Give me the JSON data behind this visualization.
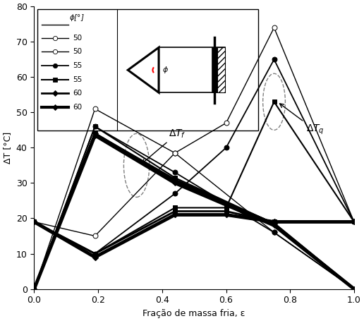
{
  "xlabel": "Fração de massa fria, ε",
  "ylabel": "ΔT [°C]",
  "xlim": [
    0.0,
    1.0
  ],
  "ylim": [
    0,
    80
  ],
  "yticks": [
    0,
    10,
    20,
    30,
    40,
    50,
    60,
    70,
    80
  ],
  "xticks": [
    0.0,
    0.2,
    0.4,
    0.6,
    0.8,
    1.0
  ],
  "series_deltaf": [
    {
      "x": [
        0.0,
        0.19,
        0.44,
        0.75,
        1.0
      ],
      "y": [
        0.0,
        51.0,
        38.5,
        16.0,
        0.0
      ],
      "lw": 1.0,
      "marker": "o",
      "mfc": "white",
      "ms": 5
    },
    {
      "x": [
        0.0,
        0.19,
        0.44,
        0.75,
        1.0
      ],
      "y": [
        0.0,
        46.0,
        33.0,
        16.0,
        0.0
      ],
      "lw": 1.3,
      "marker": "o",
      "mfc": "black",
      "ms": 5
    },
    {
      "x": [
        0.0,
        0.19,
        0.44,
        0.75,
        1.0
      ],
      "y": [
        0.0,
        46.0,
        31.5,
        18.5,
        0.0
      ],
      "lw": 1.5,
      "marker": "s",
      "mfc": "black",
      "ms": 5
    },
    {
      "x": [
        0.0,
        0.19,
        0.44,
        0.75,
        1.0
      ],
      "y": [
        0.0,
        44.0,
        31.0,
        18.5,
        0.0
      ],
      "lw": 2.0,
      "marker": "s",
      "mfc": "black",
      "ms": 5
    },
    {
      "x": [
        0.0,
        0.19,
        0.44,
        0.75,
        1.0
      ],
      "y": [
        0.0,
        44.0,
        30.5,
        18.5,
        0.0
      ],
      "lw": 2.5,
      "marker": "D",
      "mfc": "black",
      "ms": 4
    },
    {
      "x": [
        0.0,
        0.19,
        0.44,
        0.75,
        1.0
      ],
      "y": [
        0.0,
        43.5,
        30.0,
        18.0,
        0.0
      ],
      "lw": 3.5,
      "marker": "D",
      "mfc": "black",
      "ms": 4
    }
  ],
  "series_deltaq": [
    {
      "x": [
        0.0,
        0.19,
        0.44,
        0.6,
        0.75,
        1.0
      ],
      "y": [
        19.0,
        15.0,
        38.5,
        47.0,
        74.0,
        19.0
      ],
      "lw": 1.0,
      "marker": "o",
      "mfc": "white",
      "ms": 5
    },
    {
      "x": [
        0.0,
        0.19,
        0.44,
        0.6,
        0.75,
        1.0
      ],
      "y": [
        19.0,
        10.0,
        27.0,
        40.0,
        65.0,
        19.0
      ],
      "lw": 1.3,
      "marker": "o",
      "mfc": "black",
      "ms": 5
    },
    {
      "x": [
        0.0,
        0.19,
        0.44,
        0.6,
        0.75,
        1.0
      ],
      "y": [
        19.0,
        10.0,
        23.0,
        23.0,
        53.0,
        19.0
      ],
      "lw": 1.5,
      "marker": "s",
      "mfc": "black",
      "ms": 5
    },
    {
      "x": [
        0.0,
        0.19,
        0.44,
        0.6,
        0.75,
        1.0
      ],
      "y": [
        19.0,
        10.0,
        22.0,
        22.0,
        19.0,
        19.0
      ],
      "lw": 2.0,
      "marker": "s",
      "mfc": "black",
      "ms": 5
    },
    {
      "x": [
        0.0,
        0.19,
        0.44,
        0.6,
        0.75,
        1.0
      ],
      "y": [
        19.0,
        9.0,
        21.0,
        21.0,
        19.0,
        19.0
      ],
      "lw": 2.5,
      "marker": "D",
      "mfc": "black",
      "ms": 4
    },
    {
      "x": [
        0.0,
        0.19,
        0.44,
        0.6,
        0.75,
        1.0
      ],
      "y": [
        19.0,
        9.0,
        21.0,
        21.0,
        19.0,
        19.0
      ],
      "lw": 3.5,
      "marker": "D",
      "mfc": "black",
      "ms": 4
    }
  ]
}
